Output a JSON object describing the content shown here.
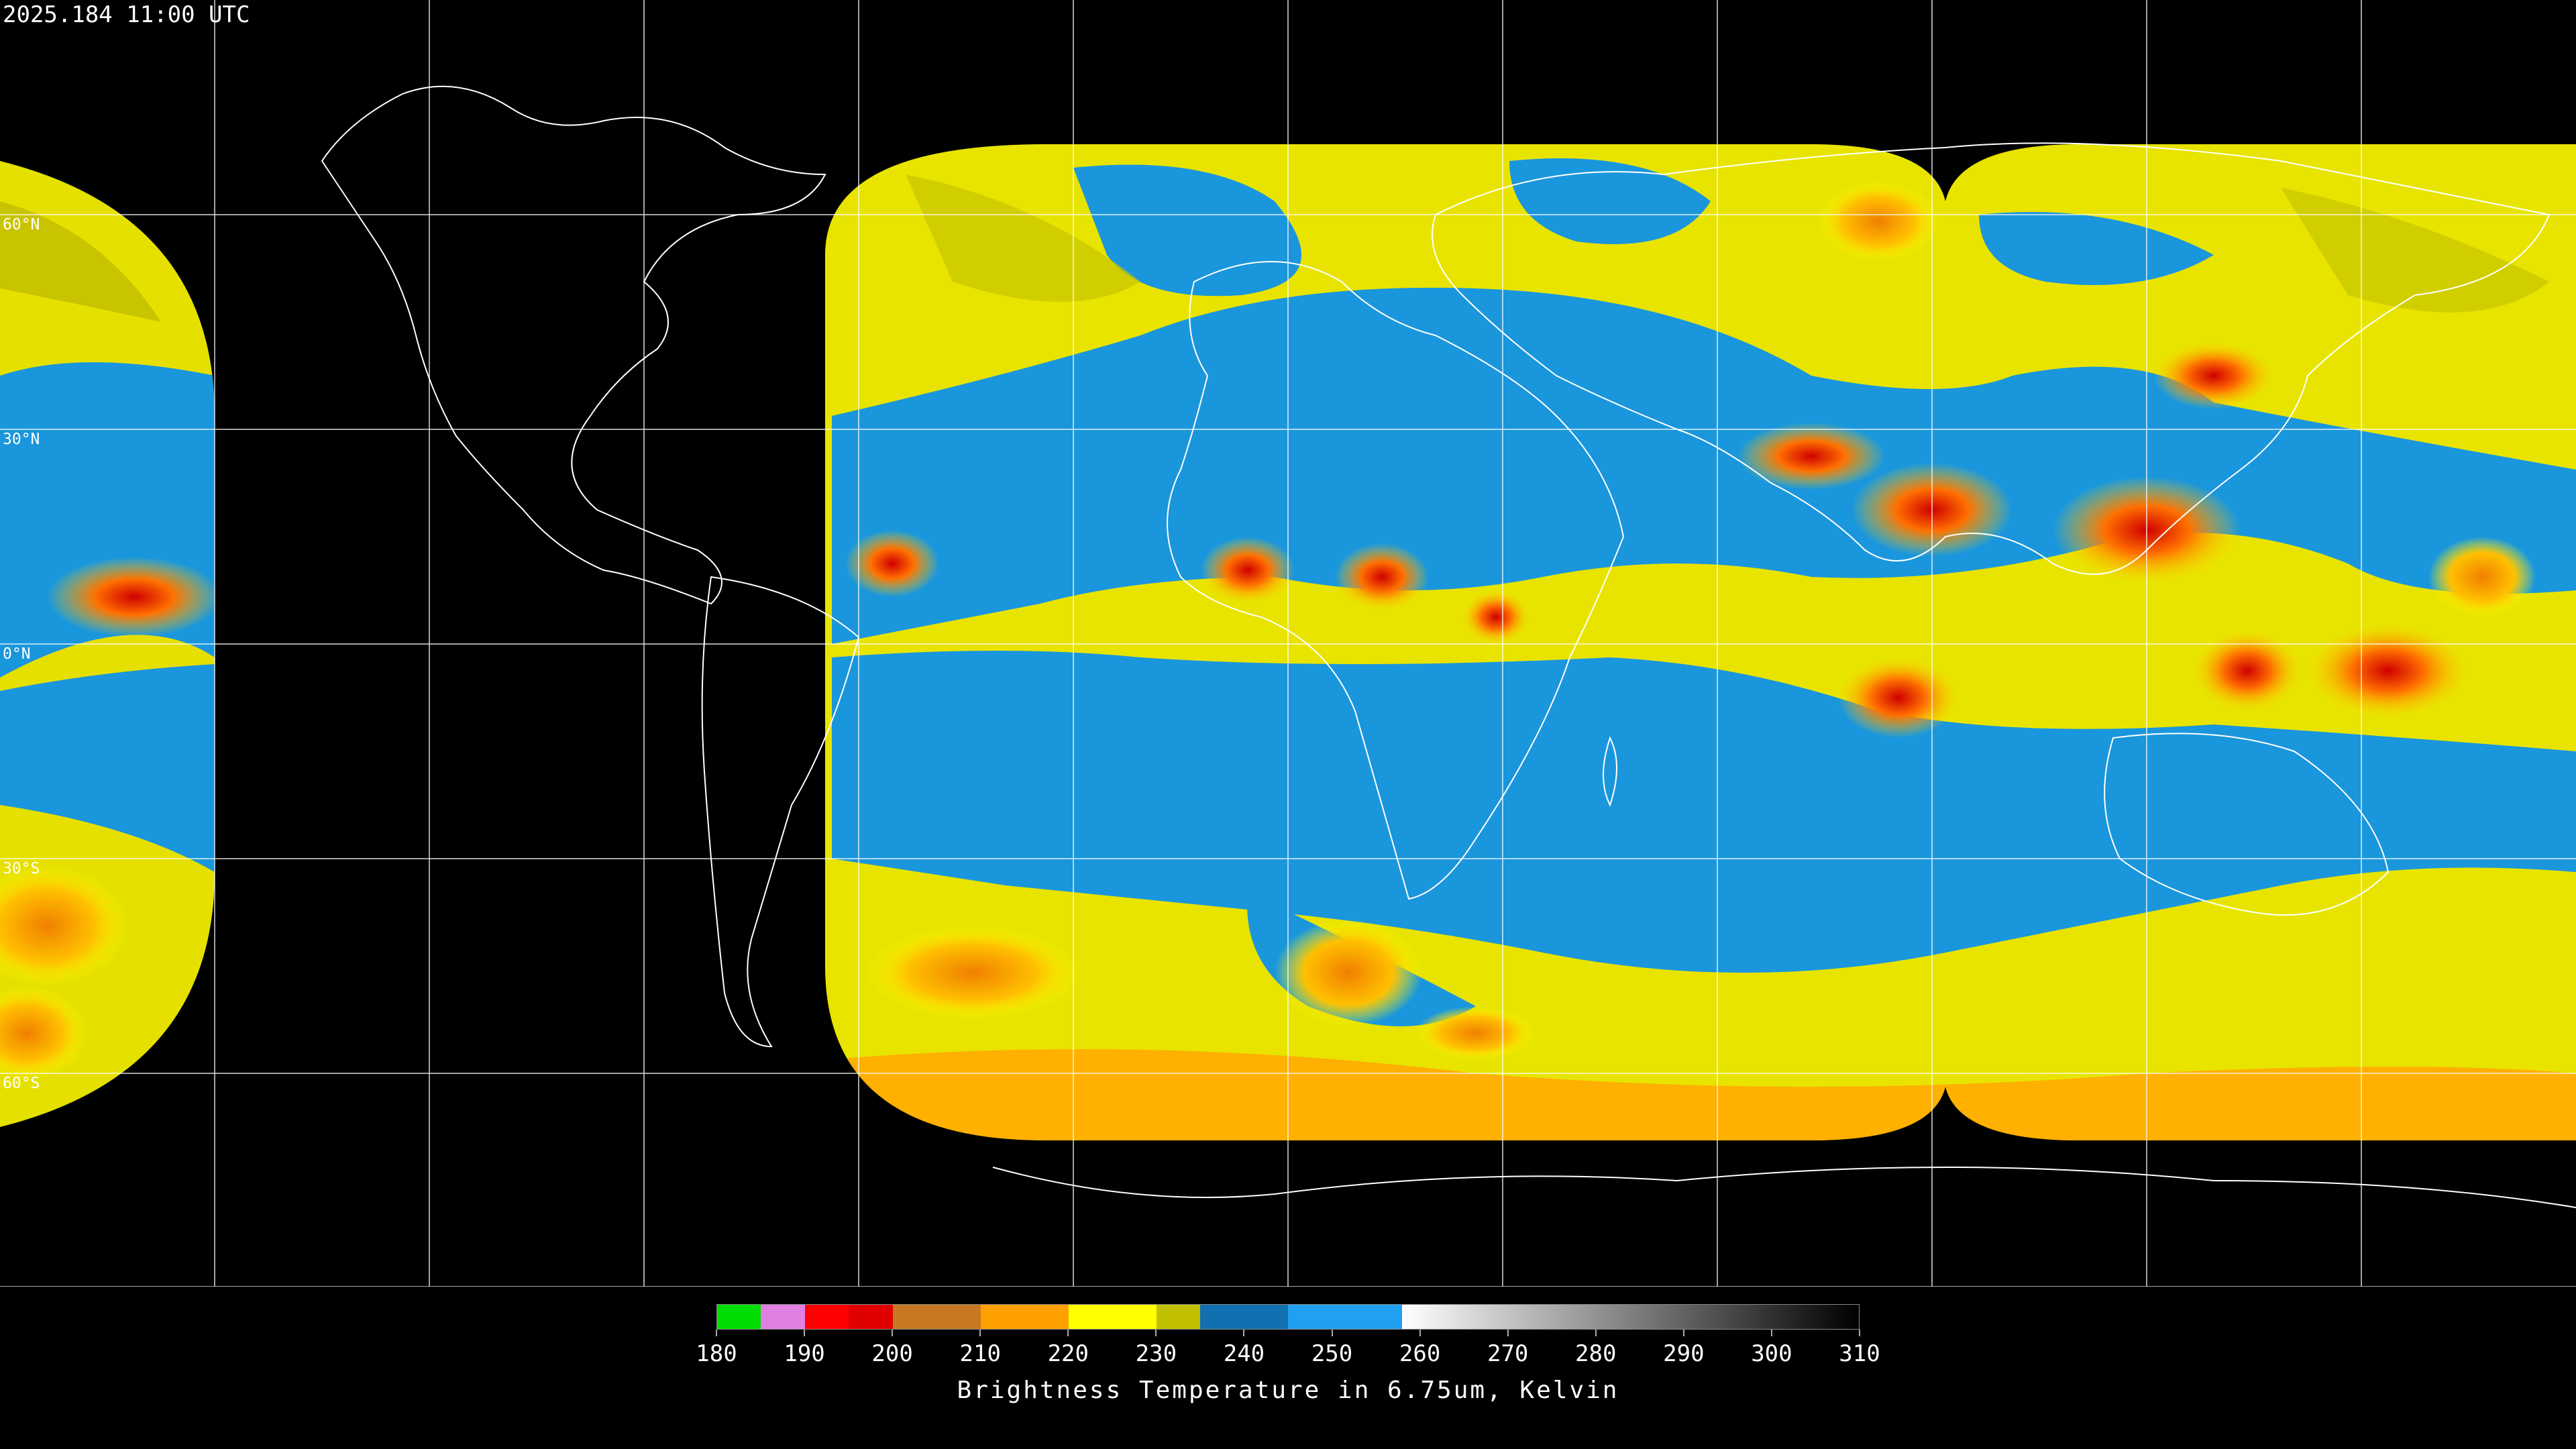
{
  "header": {
    "timestamp": "2025.184 11:00 UTC"
  },
  "map": {
    "projection": "equirectangular",
    "graticule_step_degrees": 30,
    "lat_labels": [
      "60°N",
      "30°N",
      "0°N",
      "30°S",
      "60°S"
    ],
    "colors": {
      "background": "#000000",
      "coastline": "#ffffff",
      "graticule": "#ffffff",
      "very_cold": "#e00000",
      "cold": "#f0a000",
      "cool": "#ffff00",
      "mild": "#c8c800",
      "warm": "#1e90e6",
      "warmest": "#0a73c8"
    }
  },
  "legend": {
    "title": "Brightness Temperature in 6.75um, Kelvin",
    "tick_labels": [
      "180",
      "190",
      "200",
      "210",
      "220",
      "230",
      "240",
      "250",
      "260",
      "270",
      "280",
      "290",
      "300",
      "310"
    ],
    "range_kelvin": [
      180,
      310
    ],
    "segments": [
      {
        "from": 180,
        "to": 185,
        "color": "#00dd00"
      },
      {
        "from": 185,
        "to": 190,
        "color": "#e080e0"
      },
      {
        "from": 190,
        "to": 195,
        "color": "#ff0000"
      },
      {
        "from": 195,
        "to": 200,
        "color": "#e00000"
      },
      {
        "from": 200,
        "to": 210,
        "color": "#c87820"
      },
      {
        "from": 210,
        "to": 220,
        "color": "#ffa000"
      },
      {
        "from": 220,
        "to": 230,
        "color": "#ffff00"
      },
      {
        "from": 230,
        "to": 235,
        "color": "#c0c000"
      },
      {
        "from": 235,
        "to": 245,
        "color": "#1070b0"
      },
      {
        "from": 245,
        "to": 258,
        "color": "#20a0f0"
      },
      {
        "from": 258,
        "to": 310,
        "color": "gradient-white-to-black"
      }
    ]
  }
}
